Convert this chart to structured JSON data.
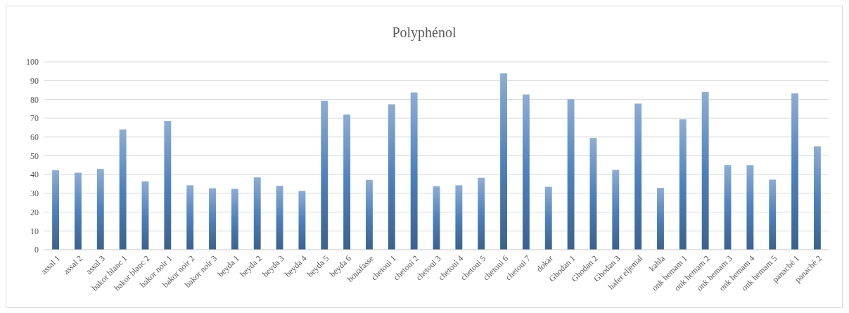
{
  "chart_data": {
    "type": "bar",
    "title": "Polyphénol",
    "categories": [
      "assal 1",
      "assal 2",
      "assal 3",
      "bakor blanc 1",
      "bakor blanc 2",
      "bakor noir 1",
      "bakor noir 2",
      "bakor noir 3",
      "beyda 1",
      "beyda 2",
      "beyda 3",
      "beyda 4",
      "beyda 5",
      "beyda 6",
      "bouafasse",
      "chetoui 1",
      "chetoui 2",
      "chetoui 3",
      "chetoui 4",
      "chetoui 5",
      "chetoui 6",
      "chetoui 7",
      "dokar",
      "Ghodan 1",
      "Ghodan 2",
      "Ghodan 3",
      "hafer eljemal",
      "kahla",
      "onk hemam 1",
      "onk hemam 2",
      "onk hemam 3",
      "onk hemam 4",
      "onk hemam 5",
      "panaché 1",
      "panaché 2"
    ],
    "values": [
      42.3,
      41.0,
      43.0,
      64.0,
      36.4,
      68.5,
      34.3,
      32.7,
      32.4,
      38.5,
      34.0,
      31.3,
      79.3,
      72.0,
      37.2,
      77.4,
      83.7,
      33.8,
      34.3,
      38.3,
      93.9,
      82.6,
      33.5,
      80.1,
      59.5,
      42.5,
      77.8,
      32.9,
      69.5,
      84.0,
      45.0,
      45.0,
      37.3,
      83.3,
      55.0
    ],
    "color": "#4f81bd",
    "ylim": [
      0,
      100
    ],
    "yticks": [
      0,
      10,
      20,
      30,
      40,
      50,
      60,
      70,
      80,
      90,
      100
    ],
    "grid": "y"
  }
}
